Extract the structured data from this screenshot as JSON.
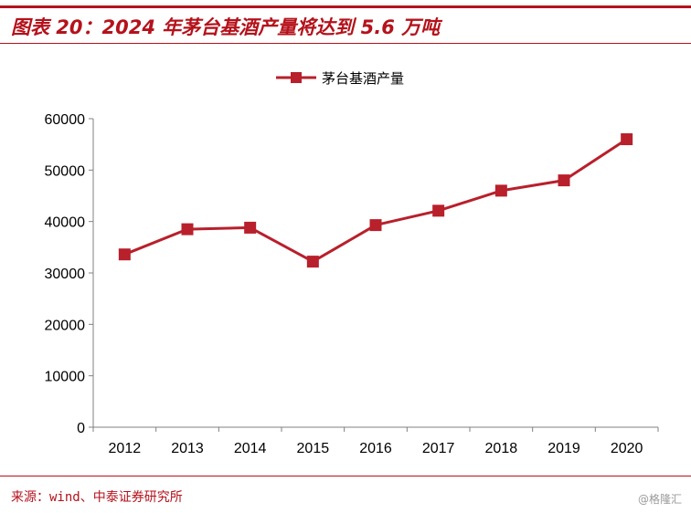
{
  "header": {
    "title": "图表 20：2024 年茅台基酒产量将达到 5.6 万吨"
  },
  "footer": {
    "source": "来源：wind、中泰证券研究所",
    "watermark": "@格隆汇"
  },
  "colors": {
    "accent": "#b5121b",
    "series": "#b8202b",
    "axis": "#808080",
    "text": "#000000"
  },
  "chart_data": {
    "type": "line",
    "x": [
      "2012",
      "2013",
      "2014",
      "2015",
      "2016",
      "2017",
      "2018",
      "2019",
      "2020"
    ],
    "series": [
      {
        "name": "茅台基酒产量",
        "values": [
          33600,
          38500,
          38800,
          32200,
          39300,
          42100,
          46000,
          48000,
          56000
        ]
      }
    ],
    "ylim": [
      0,
      60000
    ],
    "yticks": [
      "0",
      "10000",
      "20000",
      "30000",
      "40000",
      "50000",
      "60000"
    ],
    "grid": false,
    "legend": "top-center",
    "marker": "square"
  }
}
